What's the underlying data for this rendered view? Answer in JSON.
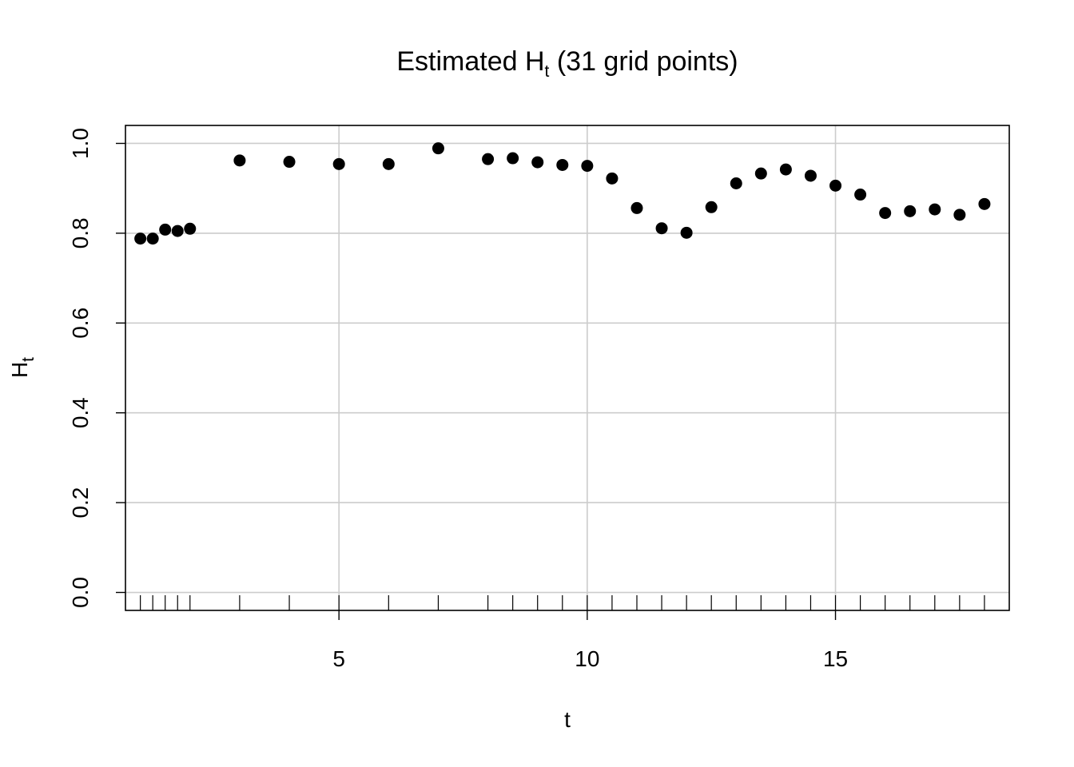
{
  "chart_data": {
    "type": "scatter",
    "title": {
      "main": "Estimated H",
      "sub": "t",
      "rest": " (31 grid points)"
    },
    "xlabel": "t",
    "ylabel": {
      "main": "H",
      "sub": "t"
    },
    "xlim": [
      0.7,
      18.5
    ],
    "ylim": [
      -0.04,
      1.04
    ],
    "x_ticks": [
      5,
      10,
      15
    ],
    "y_ticks": [
      0.0,
      0.2,
      0.4,
      0.6,
      0.8,
      1.0
    ],
    "x_tick_labels": [
      "5",
      "10",
      "15"
    ],
    "y_tick_labels": [
      "0.0",
      "0.2",
      "0.4",
      "0.6",
      "0.8",
      "1.0"
    ],
    "grid": true,
    "rug": true,
    "x": [
      1.0,
      1.25,
      1.5,
      1.75,
      2.0,
      3.0,
      4.0,
      5.0,
      6.0,
      7.0,
      8.0,
      8.5,
      9.0,
      9.5,
      10.0,
      10.5,
      11.0,
      11.5,
      12.0,
      12.5,
      13.0,
      13.5,
      14.0,
      14.5,
      15.0,
      15.5,
      16.0,
      16.5,
      17.0,
      17.5,
      18.0
    ],
    "y": [
      0.788,
      0.788,
      0.808,
      0.805,
      0.81,
      0.962,
      0.959,
      0.954,
      0.954,
      0.989,
      0.965,
      0.967,
      0.958,
      0.952,
      0.95,
      0.922,
      0.856,
      0.811,
      0.801,
      0.858,
      0.911,
      0.933,
      0.942,
      0.928,
      0.906,
      0.886,
      0.845,
      0.849,
      0.853,
      0.841,
      0.865
    ]
  }
}
